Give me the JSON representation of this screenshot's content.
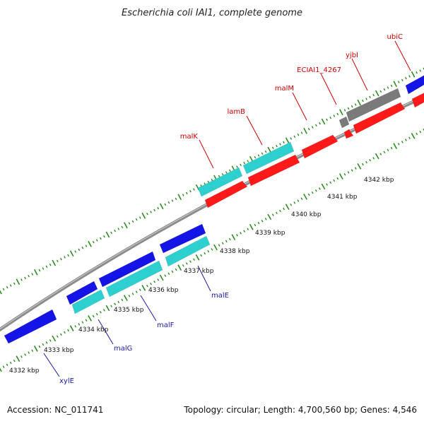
{
  "title": "Escherichia coli IAI1, complete genome",
  "accession": "Accession: NC_011741",
  "summary": "Topology: circular; Length: 4,700,560 bp; Genes: 4,546",
  "colors": {
    "backbone": "#8c8c8c",
    "tick": "#2e8b22",
    "forward_cds": "#ff1a1a",
    "forward_cds_alt": "#7a7a7a",
    "reverse_cds": "#1414e6",
    "reverse_operon": "#2ecfcf",
    "upper_label": "#cc0000",
    "lower_label": "#1a1aa0"
  },
  "ruler": [
    {
      "kb": 4332,
      "label": "4332 kbp"
    },
    {
      "kb": 4333,
      "label": "4333 kbp"
    },
    {
      "kb": 4334,
      "label": "4334 kbp"
    },
    {
      "kb": 4335,
      "label": "4335 kbp"
    },
    {
      "kb": 4336,
      "label": "4336 kbp"
    },
    {
      "kb": 4337,
      "label": "4337 kbp"
    },
    {
      "kb": 4338,
      "label": "4338 kbp"
    },
    {
      "kb": 4339,
      "label": "4339 kbp"
    },
    {
      "kb": 4340,
      "label": "4340 kbp"
    },
    {
      "kb": 4341,
      "label": "4341 kbp"
    },
    {
      "kb": 4342,
      "label": "4342 kbp"
    }
  ],
  "upper_labels": [
    "malK",
    "lamB",
    "malM",
    "ECIAI1_4267",
    "yjbI",
    "ubiC"
  ],
  "lower_labels": [
    "xylE",
    "malG",
    "malF",
    "malE"
  ]
}
